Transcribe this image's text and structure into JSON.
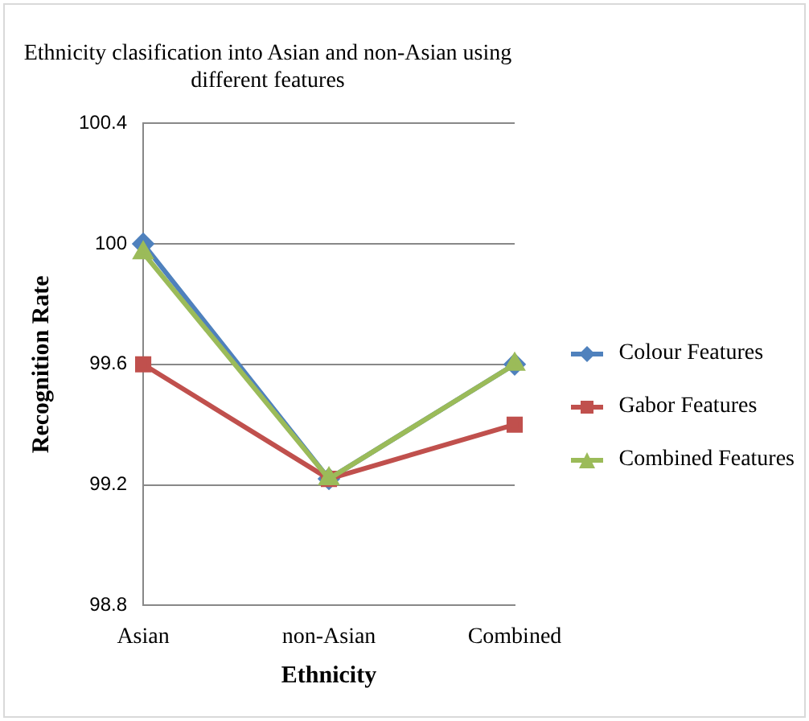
{
  "chart_data": {
    "type": "line",
    "title": "Ethnicity clasification into Asian and non-Asian using different features",
    "xlabel": "Ethnicity",
    "ylabel": "Recognition Rate",
    "categories": [
      "Asian",
      "non-Asian",
      "Combined"
    ],
    "series": [
      {
        "name": "Colour Features",
        "color": "#4f81bd",
        "marker": "diamond",
        "values": [
          100,
          99.22,
          99.6
        ]
      },
      {
        "name": "Gabor Features",
        "color": "#c0504d",
        "marker": "square",
        "values": [
          99.6,
          99.22,
          99.4
        ]
      },
      {
        "name": "Combined Features",
        "color": "#9bbb59",
        "marker": "triangle",
        "values": [
          99.97,
          99.22,
          99.6
        ]
      }
    ],
    "ylim": [
      98.8,
      100.4
    ],
    "yticks": [
      98.8,
      99.2,
      99.6,
      100,
      100.4
    ],
    "grid": "y",
    "legend": "right"
  }
}
